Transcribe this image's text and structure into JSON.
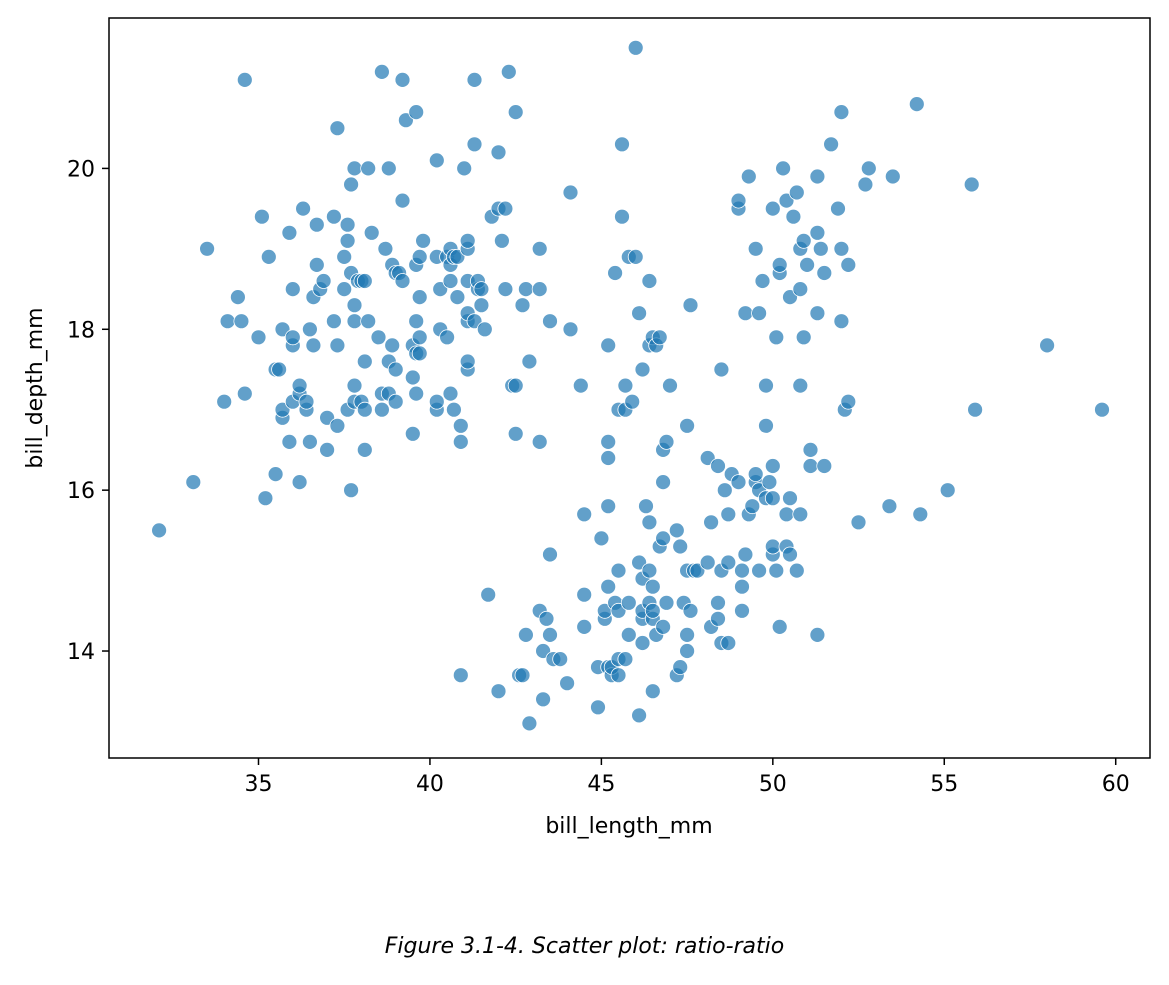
{
  "caption": "Figure 3.1-4. Scatter plot: ratio-ratio",
  "chart_data": {
    "type": "scatter",
    "xlabel": "bill_length_mm",
    "ylabel": "bill_depth_mm",
    "xlim": [
      30.64,
      61.0
    ],
    "ylim": [
      12.67,
      21.87
    ],
    "xticks": [
      35,
      40,
      45,
      50,
      55,
      60
    ],
    "yticks": [
      14,
      16,
      18,
      20
    ],
    "grid": false,
    "marker_color": "#1f77b4",
    "points": [
      [
        32.1,
        15.5
      ],
      [
        33.1,
        16.1
      ],
      [
        33.5,
        19.0
      ],
      [
        34.0,
        17.1
      ],
      [
        34.1,
        18.1
      ],
      [
        34.4,
        18.4
      ],
      [
        34.5,
        18.1
      ],
      [
        34.6,
        17.2
      ],
      [
        34.6,
        21.1
      ],
      [
        35.0,
        17.9
      ],
      [
        35.1,
        19.4
      ],
      [
        35.2,
        15.9
      ],
      [
        35.3,
        18.9
      ],
      [
        35.5,
        16.2
      ],
      [
        35.5,
        17.5
      ],
      [
        35.6,
        17.5
      ],
      [
        35.7,
        16.9
      ],
      [
        35.7,
        17.0
      ],
      [
        35.7,
        18.0
      ],
      [
        35.9,
        16.6
      ],
      [
        35.9,
        19.2
      ],
      [
        36.0,
        17.1
      ],
      [
        36.0,
        17.8
      ],
      [
        36.0,
        17.9
      ],
      [
        36.0,
        18.5
      ],
      [
        36.2,
        16.1
      ],
      [
        36.2,
        17.2
      ],
      [
        36.2,
        17.3
      ],
      [
        36.3,
        19.5
      ],
      [
        36.4,
        17.0
      ],
      [
        36.4,
        17.1
      ],
      [
        36.5,
        16.6
      ],
      [
        36.5,
        18.0
      ],
      [
        36.6,
        17.8
      ],
      [
        36.6,
        18.4
      ],
      [
        36.7,
        18.8
      ],
      [
        36.7,
        19.3
      ],
      [
        36.8,
        18.5
      ],
      [
        36.9,
        18.6
      ],
      [
        37.0,
        16.5
      ],
      [
        37.0,
        16.9
      ],
      [
        37.2,
        18.1
      ],
      [
        37.2,
        19.4
      ],
      [
        37.3,
        16.8
      ],
      [
        37.3,
        17.8
      ],
      [
        37.3,
        20.5
      ],
      [
        37.5,
        18.5
      ],
      [
        37.5,
        18.9
      ],
      [
        37.6,
        17.0
      ],
      [
        37.6,
        19.1
      ],
      [
        37.6,
        19.3
      ],
      [
        37.7,
        16.0
      ],
      [
        37.7,
        18.7
      ],
      [
        37.7,
        19.8
      ],
      [
        37.8,
        17.1
      ],
      [
        37.8,
        17.3
      ],
      [
        37.8,
        18.1
      ],
      [
        37.8,
        18.3
      ],
      [
        37.8,
        20.0
      ],
      [
        37.9,
        18.6
      ],
      [
        38.0,
        17.1
      ],
      [
        38.0,
        18.6
      ],
      [
        38.1,
        16.5
      ],
      [
        38.1,
        17.0
      ],
      [
        38.1,
        17.6
      ],
      [
        38.1,
        18.6
      ],
      [
        38.2,
        18.1
      ],
      [
        38.2,
        20.0
      ],
      [
        38.3,
        19.2
      ],
      [
        38.5,
        17.9
      ],
      [
        38.6,
        17.0
      ],
      [
        38.6,
        17.2
      ],
      [
        38.6,
        21.2
      ],
      [
        38.7,
        19.0
      ],
      [
        38.8,
        17.2
      ],
      [
        38.8,
        17.6
      ],
      [
        38.8,
        20.0
      ],
      [
        38.9,
        17.8
      ],
      [
        38.9,
        18.8
      ],
      [
        39.0,
        17.1
      ],
      [
        39.0,
        17.5
      ],
      [
        39.0,
        18.7
      ],
      [
        39.1,
        18.7
      ],
      [
        39.2,
        18.6
      ],
      [
        39.2,
        19.6
      ],
      [
        39.2,
        21.1
      ],
      [
        39.3,
        20.6
      ],
      [
        39.5,
        16.7
      ],
      [
        39.5,
        17.4
      ],
      [
        39.5,
        17.8
      ],
      [
        39.6,
        17.2
      ],
      [
        39.6,
        17.7
      ],
      [
        39.6,
        18.1
      ],
      [
        39.6,
        18.8
      ],
      [
        39.6,
        20.7
      ],
      [
        39.7,
        17.7
      ],
      [
        39.7,
        17.9
      ],
      [
        39.7,
        18.4
      ],
      [
        39.7,
        18.9
      ],
      [
        39.8,
        19.1
      ],
      [
        40.2,
        17.0
      ],
      [
        40.2,
        17.1
      ],
      [
        40.2,
        18.9
      ],
      [
        40.2,
        20.1
      ],
      [
        40.3,
        18.0
      ],
      [
        40.3,
        18.5
      ],
      [
        40.5,
        17.9
      ],
      [
        40.5,
        18.9
      ],
      [
        40.6,
        17.2
      ],
      [
        40.6,
        18.6
      ],
      [
        40.6,
        18.8
      ],
      [
        40.6,
        19.0
      ],
      [
        40.7,
        17.0
      ],
      [
        40.7,
        18.9
      ],
      [
        40.8,
        18.4
      ],
      [
        40.8,
        18.9
      ],
      [
        40.9,
        16.6
      ],
      [
        40.9,
        16.8
      ],
      [
        40.9,
        13.7
      ],
      [
        41.0,
        20.0
      ],
      [
        41.1,
        17.5
      ],
      [
        41.1,
        17.6
      ],
      [
        41.1,
        18.1
      ],
      [
        41.1,
        18.2
      ],
      [
        41.1,
        18.6
      ],
      [
        41.1,
        19.0
      ],
      [
        41.1,
        19.1
      ],
      [
        41.3,
        18.1
      ],
      [
        41.3,
        20.3
      ],
      [
        41.3,
        21.1
      ],
      [
        41.4,
        18.5
      ],
      [
        41.4,
        18.6
      ],
      [
        41.5,
        18.3
      ],
      [
        41.5,
        18.5
      ],
      [
        41.6,
        18.0
      ],
      [
        41.7,
        14.7
      ],
      [
        41.8,
        19.4
      ],
      [
        42.0,
        13.5
      ],
      [
        42.0,
        19.5
      ],
      [
        42.0,
        20.2
      ],
      [
        42.1,
        19.1
      ],
      [
        42.2,
        18.5
      ],
      [
        42.2,
        19.5
      ],
      [
        42.3,
        21.2
      ],
      [
        42.4,
        17.3
      ],
      [
        42.5,
        16.7
      ],
      [
        42.5,
        17.3
      ],
      [
        42.5,
        20.7
      ],
      [
        42.6,
        13.7
      ],
      [
        42.7,
        13.7
      ],
      [
        42.7,
        18.3
      ],
      [
        42.8,
        14.2
      ],
      [
        42.8,
        18.5
      ],
      [
        42.9,
        13.1
      ],
      [
        42.9,
        17.6
      ],
      [
        43.2,
        14.5
      ],
      [
        43.2,
        16.6
      ],
      [
        43.2,
        18.5
      ],
      [
        43.2,
        19.0
      ],
      [
        43.3,
        13.4
      ],
      [
        43.3,
        14.0
      ],
      [
        43.4,
        14.4
      ],
      [
        43.5,
        14.2
      ],
      [
        43.5,
        15.2
      ],
      [
        43.5,
        18.1
      ],
      [
        43.6,
        13.9
      ],
      [
        43.8,
        13.9
      ],
      [
        44.0,
        13.6
      ],
      [
        44.1,
        18.0
      ],
      [
        44.1,
        19.7
      ],
      [
        44.4,
        17.3
      ],
      [
        44.5,
        14.3
      ],
      [
        44.5,
        14.7
      ],
      [
        44.5,
        15.7
      ],
      [
        44.9,
        13.3
      ],
      [
        44.9,
        13.8
      ],
      [
        45.0,
        15.4
      ],
      [
        45.1,
        14.4
      ],
      [
        45.1,
        14.5
      ],
      [
        45.2,
        13.8
      ],
      [
        45.2,
        14.8
      ],
      [
        45.2,
        15.8
      ],
      [
        45.2,
        16.4
      ],
      [
        45.2,
        16.6
      ],
      [
        45.2,
        17.8
      ],
      [
        45.3,
        13.7
      ],
      [
        45.3,
        13.8
      ],
      [
        45.4,
        14.6
      ],
      [
        45.4,
        18.7
      ],
      [
        45.5,
        13.7
      ],
      [
        45.5,
        13.9
      ],
      [
        45.5,
        14.5
      ],
      [
        45.5,
        15.0
      ],
      [
        45.5,
        17.0
      ],
      [
        45.6,
        20.3
      ],
      [
        45.6,
        19.4
      ],
      [
        45.7,
        13.9
      ],
      [
        45.7,
        17.0
      ],
      [
        45.7,
        17.3
      ],
      [
        45.8,
        14.2
      ],
      [
        45.8,
        14.6
      ],
      [
        45.8,
        18.9
      ],
      [
        45.9,
        17.1
      ],
      [
        46.0,
        21.5
      ],
      [
        46.0,
        18.9
      ],
      [
        46.1,
        13.2
      ],
      [
        46.1,
        15.1
      ],
      [
        46.1,
        18.2
      ],
      [
        46.2,
        14.1
      ],
      [
        46.2,
        14.4
      ],
      [
        46.2,
        14.5
      ],
      [
        46.2,
        14.9
      ],
      [
        46.2,
        17.5
      ],
      [
        46.3,
        15.8
      ],
      [
        46.4,
        14.6
      ],
      [
        46.4,
        15.0
      ],
      [
        46.4,
        15.6
      ],
      [
        46.4,
        17.8
      ],
      [
        46.4,
        18.6
      ],
      [
        46.5,
        13.5
      ],
      [
        46.5,
        14.4
      ],
      [
        46.5,
        14.5
      ],
      [
        46.5,
        14.8
      ],
      [
        46.5,
        17.9
      ],
      [
        46.6,
        14.2
      ],
      [
        46.6,
        17.8
      ],
      [
        46.7,
        15.3
      ],
      [
        46.7,
        17.9
      ],
      [
        46.8,
        14.3
      ],
      [
        46.8,
        15.4
      ],
      [
        46.8,
        16.1
      ],
      [
        46.8,
        16.5
      ],
      [
        46.9,
        14.6
      ],
      [
        46.9,
        16.6
      ],
      [
        47.0,
        17.3
      ],
      [
        47.2,
        13.7
      ],
      [
        47.2,
        15.5
      ],
      [
        47.3,
        13.8
      ],
      [
        47.3,
        15.3
      ],
      [
        47.4,
        14.6
      ],
      [
        47.5,
        14.0
      ],
      [
        47.5,
        14.2
      ],
      [
        47.5,
        15.0
      ],
      [
        47.5,
        16.8
      ],
      [
        47.6,
        14.5
      ],
      [
        47.6,
        18.3
      ],
      [
        47.7,
        15.0
      ],
      [
        47.8,
        15.0
      ],
      [
        48.1,
        15.1
      ],
      [
        48.1,
        16.4
      ],
      [
        48.2,
        14.3
      ],
      [
        48.2,
        15.6
      ],
      [
        48.4,
        14.4
      ],
      [
        48.4,
        14.6
      ],
      [
        48.4,
        16.3
      ],
      [
        48.5,
        14.1
      ],
      [
        48.5,
        15.0
      ],
      [
        48.5,
        17.5
      ],
      [
        48.6,
        16.0
      ],
      [
        48.7,
        14.1
      ],
      [
        48.7,
        15.1
      ],
      [
        48.7,
        15.7
      ],
      [
        48.8,
        16.2
      ],
      [
        49.0,
        16.1
      ],
      [
        49.0,
        19.5
      ],
      [
        49.0,
        19.6
      ],
      [
        49.1,
        14.5
      ],
      [
        49.1,
        14.8
      ],
      [
        49.1,
        15.0
      ],
      [
        49.2,
        15.2
      ],
      [
        49.2,
        18.2
      ],
      [
        49.3,
        15.7
      ],
      [
        49.3,
        19.9
      ],
      [
        49.4,
        15.8
      ],
      [
        49.5,
        16.1
      ],
      [
        49.5,
        16.2
      ],
      [
        49.5,
        19.0
      ],
      [
        49.6,
        15.0
      ],
      [
        49.6,
        16.0
      ],
      [
        49.6,
        18.2
      ],
      [
        49.7,
        18.6
      ],
      [
        49.8,
        15.9
      ],
      [
        49.8,
        16.8
      ],
      [
        49.8,
        17.3
      ],
      [
        49.9,
        16.1
      ],
      [
        50.0,
        15.2
      ],
      [
        50.0,
        15.3
      ],
      [
        50.0,
        15.9
      ],
      [
        50.0,
        16.3
      ],
      [
        50.0,
        19.5
      ],
      [
        50.1,
        15.0
      ],
      [
        50.1,
        17.9
      ],
      [
        50.2,
        14.3
      ],
      [
        50.2,
        18.7
      ],
      [
        50.2,
        18.8
      ],
      [
        50.3,
        20.0
      ],
      [
        50.4,
        15.3
      ],
      [
        50.4,
        15.7
      ],
      [
        50.4,
        19.6
      ],
      [
        50.5,
        15.2
      ],
      [
        50.5,
        15.9
      ],
      [
        50.5,
        18.4
      ],
      [
        50.6,
        19.4
      ],
      [
        50.7,
        15.0
      ],
      [
        50.7,
        19.7
      ],
      [
        50.8,
        15.7
      ],
      [
        50.8,
        17.3
      ],
      [
        50.8,
        18.5
      ],
      [
        50.8,
        19.0
      ],
      [
        50.9,
        17.9
      ],
      [
        50.9,
        19.1
      ],
      [
        51.0,
        18.8
      ],
      [
        51.1,
        16.3
      ],
      [
        51.1,
        16.5
      ],
      [
        51.3,
        14.2
      ],
      [
        51.3,
        18.2
      ],
      [
        51.3,
        19.2
      ],
      [
        51.3,
        19.9
      ],
      [
        51.4,
        19.0
      ],
      [
        51.5,
        16.3
      ],
      [
        51.5,
        18.7
      ],
      [
        51.7,
        20.3
      ],
      [
        51.9,
        19.5
      ],
      [
        52.0,
        18.1
      ],
      [
        52.0,
        19.0
      ],
      [
        52.0,
        20.7
      ],
      [
        52.1,
        17.0
      ],
      [
        52.2,
        17.1
      ],
      [
        52.2,
        18.8
      ],
      [
        52.5,
        15.6
      ],
      [
        52.7,
        19.8
      ],
      [
        52.8,
        20.0
      ],
      [
        53.4,
        15.8
      ],
      [
        53.5,
        19.9
      ],
      [
        54.2,
        20.8
      ],
      [
        54.3,
        15.7
      ],
      [
        55.1,
        16.0
      ],
      [
        55.8,
        19.8
      ],
      [
        55.9,
        17.0
      ],
      [
        58.0,
        17.8
      ],
      [
        59.6,
        17.0
      ]
    ]
  }
}
